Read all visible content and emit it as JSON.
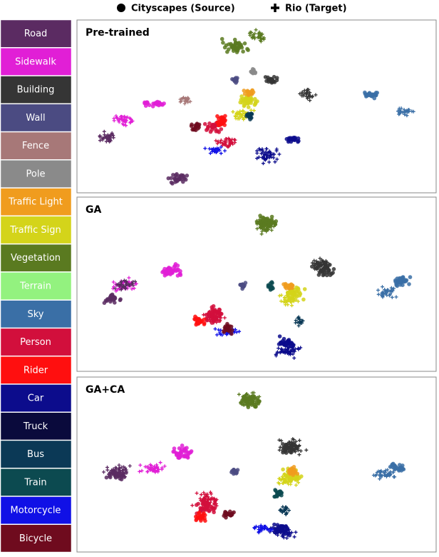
{
  "legend": {
    "source": "Cityscapes (Source)",
    "target": "Rio (Target)"
  },
  "classes": [
    {
      "name": "Road",
      "color": "#5b2b62"
    },
    {
      "name": "Sidewalk",
      "color": "#e11fd6"
    },
    {
      "name": "Building",
      "color": "#353535"
    },
    {
      "name": "Wall",
      "color": "#4b4b82"
    },
    {
      "name": "Fence",
      "color": "#a77878"
    },
    {
      "name": "Pole",
      "color": "#8a8a8a"
    },
    {
      "name": "Traffic Light",
      "color": "#f09c1e"
    },
    {
      "name": "Traffic Sign",
      "color": "#d4d41a"
    },
    {
      "name": "Vegetation",
      "color": "#5a7a20"
    },
    {
      "name": "Terrain",
      "color": "#93f27f"
    },
    {
      "name": "Sky",
      "color": "#3a6fa6"
    },
    {
      "name": "Person",
      "color": "#d20f3c"
    },
    {
      "name": "Rider",
      "color": "#ff0f0f"
    },
    {
      "name": "Car",
      "color": "#0c0c8c"
    },
    {
      "name": "Truck",
      "color": "#0a0a3c"
    },
    {
      "name": "Bus",
      "color": "#0b3956"
    },
    {
      "name": "Train",
      "color": "#0c4a50"
    },
    {
      "name": "Motorcycle",
      "color": "#1010e6"
    },
    {
      "name": "Bicycle",
      "color": "#6f0b1e"
    }
  ],
  "panels": [
    {
      "title": "Pre-trained"
    },
    {
      "title": "GA"
    },
    {
      "title": "GA+CA"
    }
  ]
}
